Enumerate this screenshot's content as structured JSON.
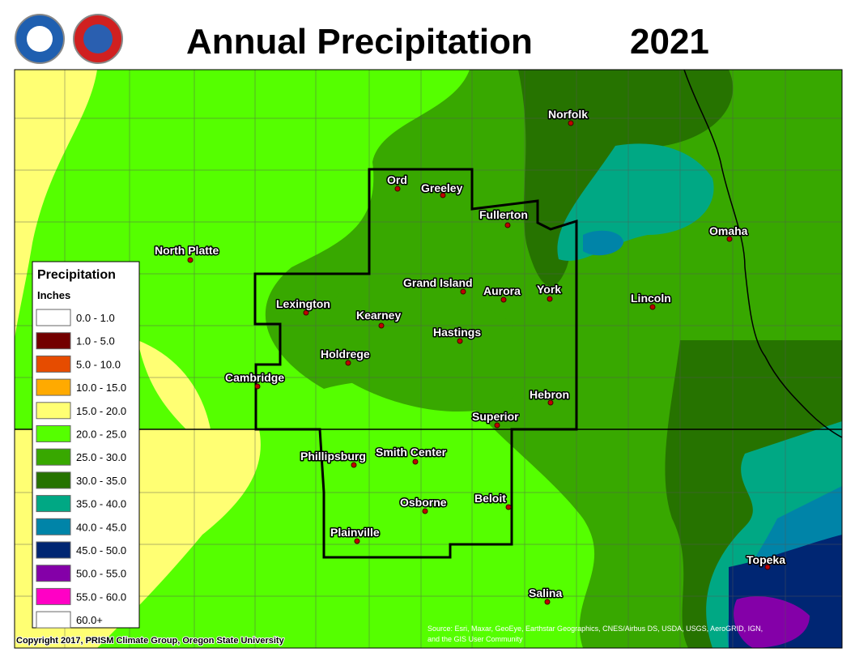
{
  "header": {
    "title": "Annual Precipitation",
    "year": "2021"
  },
  "legend": {
    "title": "Precipitation",
    "units": "Inches",
    "items": [
      {
        "label": "0.0 - 1.0",
        "color": "#ffffff"
      },
      {
        "label": "1.0 - 5.0",
        "color": "#730000"
      },
      {
        "label": "5.0 - 10.0",
        "color": "#e64c00"
      },
      {
        "label": "10.0 - 15.0",
        "color": "#ffaa00"
      },
      {
        "label": "15.0 - 20.0",
        "color": "#ffff73"
      },
      {
        "label": "20.0 - 25.0",
        "color": "#55ff00"
      },
      {
        "label": "25.0 - 30.0",
        "color": "#38a800"
      },
      {
        "label": "30.0 - 35.0",
        "color": "#267300"
      },
      {
        "label": "35.0 - 40.0",
        "color": "#00a884"
      },
      {
        "label": "40.0 - 45.0",
        "color": "#0084a8"
      },
      {
        "label": "45.0 - 50.0",
        "color": "#002673"
      },
      {
        "label": "50.0 - 55.0",
        "color": "#8400a8"
      },
      {
        "label": "55.0 - 60.0",
        "color": "#ff00c5"
      },
      {
        "label": "60.0+",
        "color": "#ffffff"
      }
    ]
  },
  "cities": [
    "Norfolk",
    "Ord",
    "Greeley",
    "Fullerton",
    "Omaha",
    "North Platte",
    "Grand Island",
    "Aurora",
    "York",
    "Lincoln",
    "Lexington",
    "Kearney",
    "Hastings",
    "Holdrege",
    "Cambridge",
    "Hebron",
    "Superior",
    "Phillipsburg",
    "Smith Center",
    "Osborne",
    "Beloit",
    "Plainville",
    "Topeka",
    "Salina"
  ],
  "copyright": "Copyright 2017, PRISM Climate Group, Oregon State University",
  "source": [
    "Source: Esri, Maxar, GeoEye, Earthstar Geographics, CNES/Airbus DS, USDA, USGS, AeroGRID, IGN,",
    "and the GIS User Community"
  ]
}
